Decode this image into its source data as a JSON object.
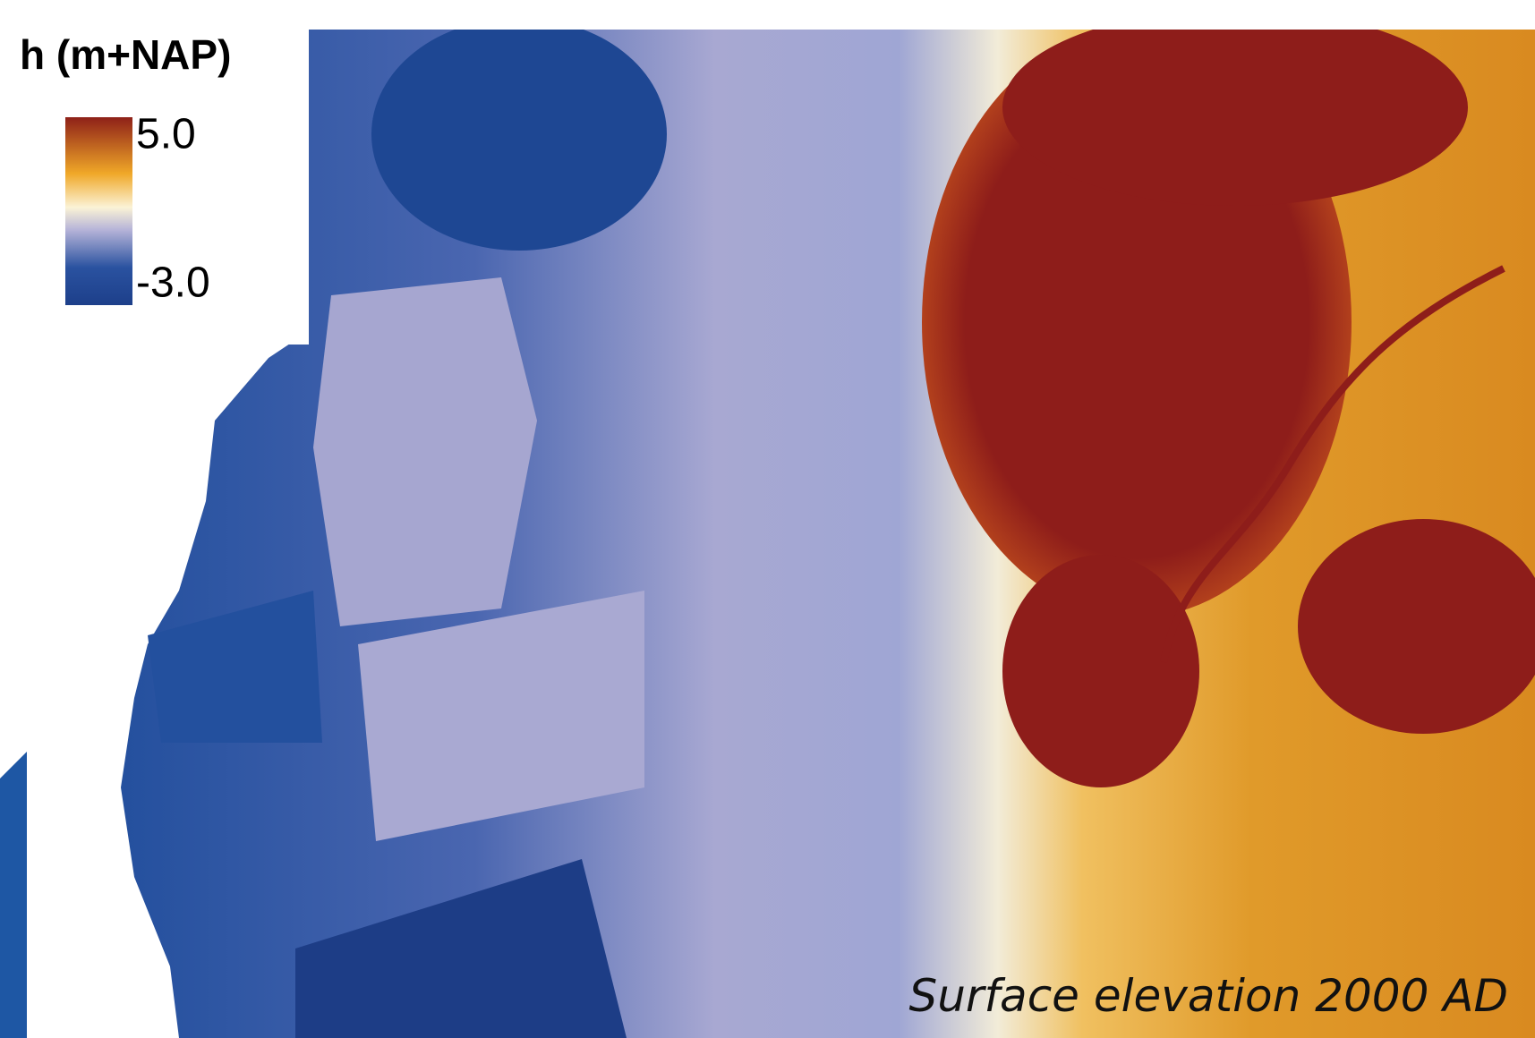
{
  "legend": {
    "title": "h (m+NAP)",
    "max": {
      "value": 5,
      "label": "5.0"
    },
    "min": {
      "value": -3,
      "label": "-3.0"
    }
  },
  "caption": "Surface elevation 2000 AD"
}
